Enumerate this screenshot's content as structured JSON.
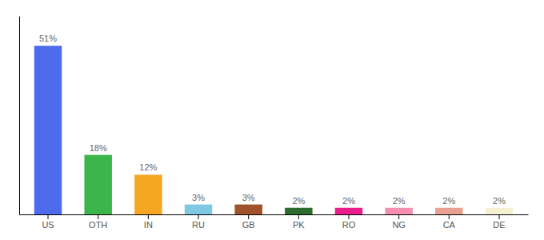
{
  "chart_data": {
    "type": "bar",
    "categories": [
      "US",
      "OTH",
      "IN",
      "RU",
      "GB",
      "PK",
      "RO",
      "NG",
      "CA",
      "DE"
    ],
    "values": [
      51,
      18,
      12,
      3,
      3,
      2,
      2,
      2,
      2,
      2
    ],
    "colors": [
      "#4F6BED",
      "#3CB54A",
      "#F5A623",
      "#7EC8E3",
      "#A0522D",
      "#2E6B2E",
      "#E91E8C",
      "#F48FB1",
      "#E8A090",
      "#F5F0D0"
    ],
    "value_labels": [
      "51%",
      "18%",
      "12%",
      "3%",
      "3%",
      "2%",
      "2%",
      "2%",
      "2%",
      "2%"
    ],
    "data_labels": true,
    "ylim": [
      0,
      60
    ],
    "tick_labels": "x"
  }
}
